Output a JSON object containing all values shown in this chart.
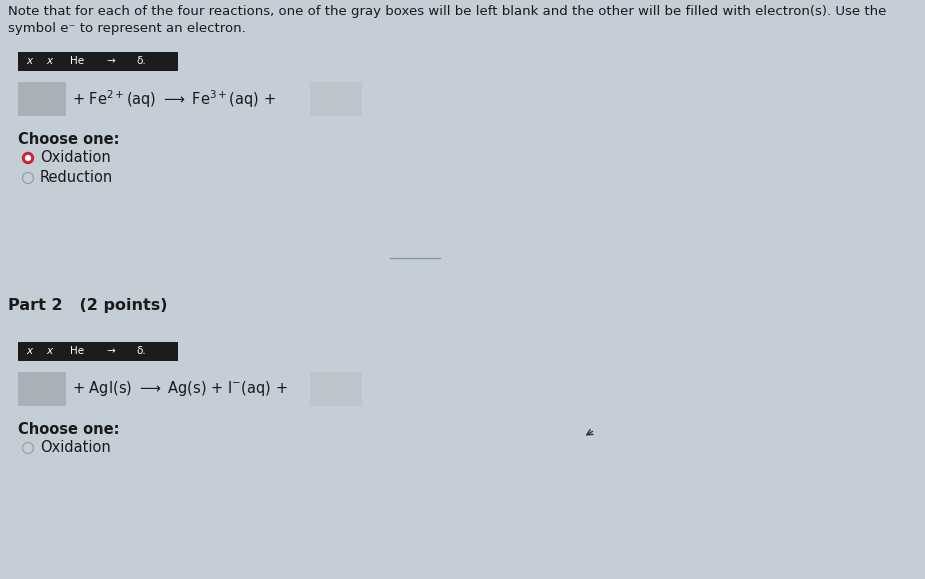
{
  "bg_color": "#c5cdd6",
  "toolbar_bg": "#1c1c1c",
  "gray_box_color": "#b0b8c0",
  "gray_box_color2": "#c0c8d0",
  "text_color": "#1a1a1a",
  "radio_red": "#cc2233",
  "radio_empty_fill": "#c5cdd6",
  "radio_empty_edge": "#999999",
  "separator_color": "#8899aa",
  "note_line1": "Note that for each of the four reactions, one of the gray boxes will be left blank and the other will be filled with electron(s). Use the",
  "note_line2": "symbol e⁻ to represent an electron.",
  "toolbar_label": "x   ₓ   He   →   δ₂",
  "reaction1_text": "+ Fe$^{2+}$(aq) ⟶ Fe$^{3+}$(aq) +",
  "reaction2_text": "+ AgI(s) ⟶ Ag(s) + I$^{-}$(aq) +",
  "choose_one": "Choose one:",
  "oxidation": "Oxidation",
  "reduction": "Reduction",
  "part2_label": "Part 2   (2 points)",
  "figw": 9.25,
  "figh": 5.79,
  "dpi": 100
}
